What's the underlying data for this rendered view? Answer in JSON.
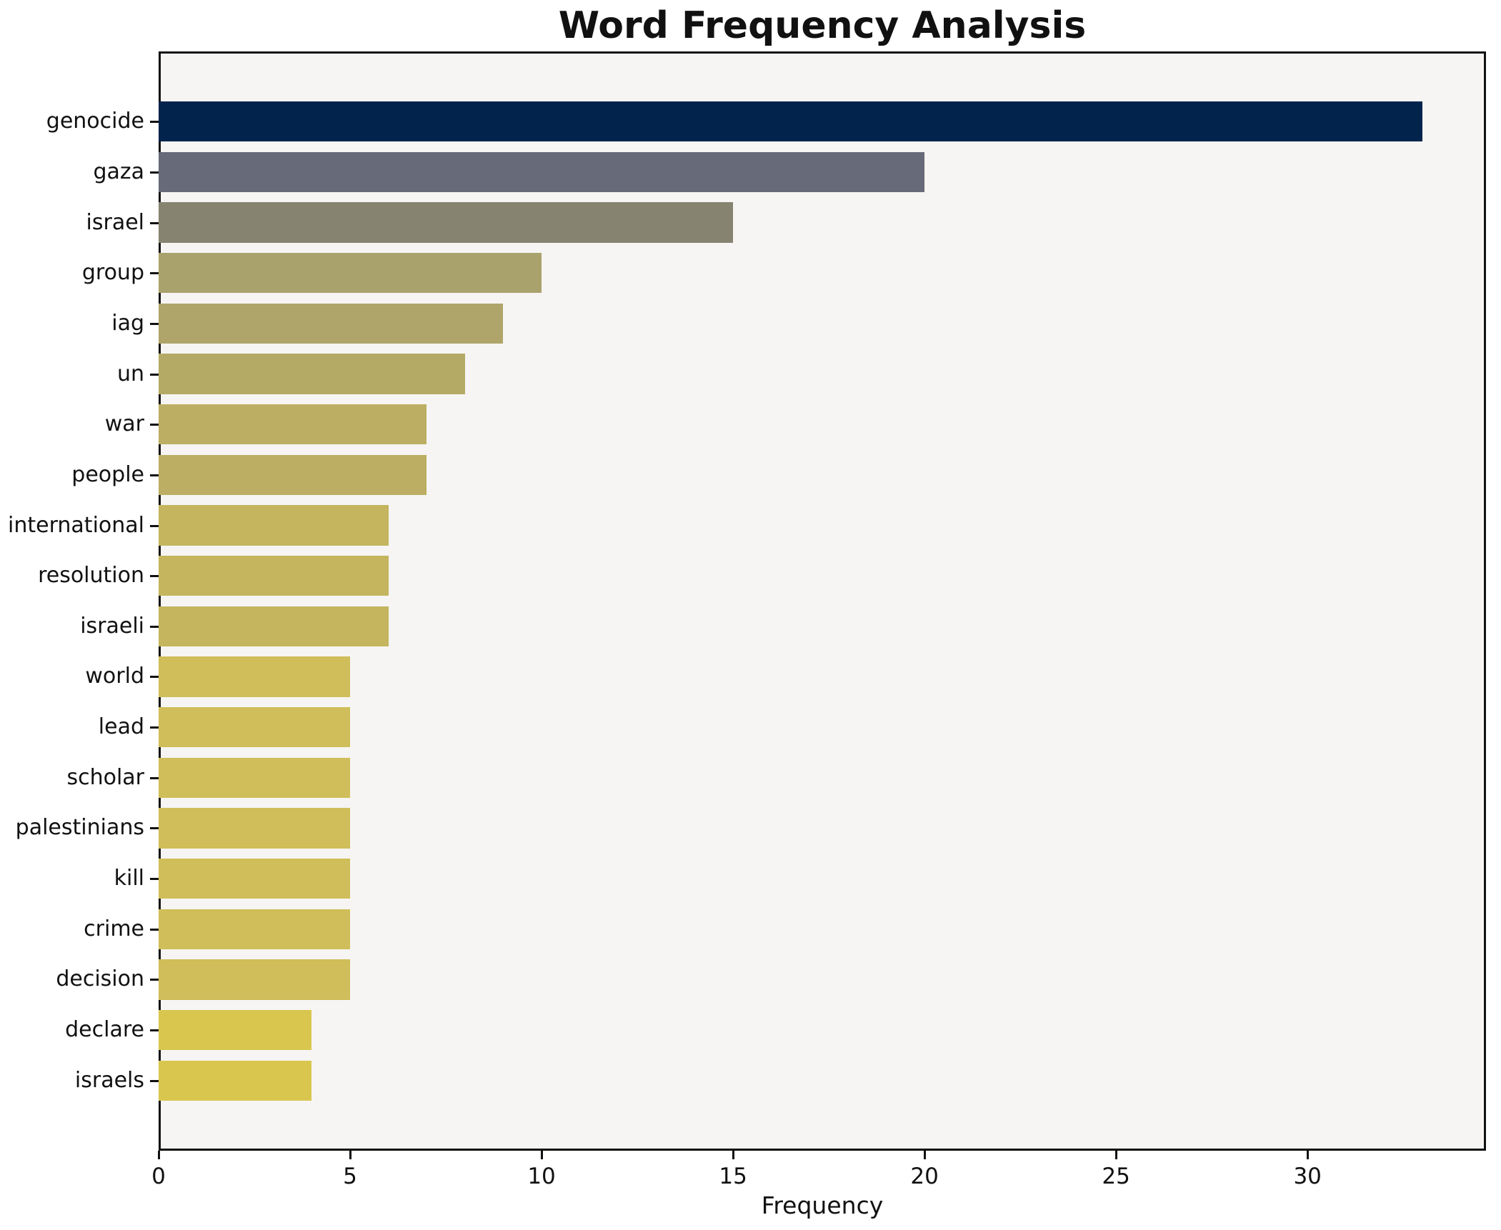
{
  "chart_data": {
    "type": "bar",
    "orientation": "horizontal",
    "title": "Word Frequency Analysis",
    "xlabel": "Frequency",
    "ylabel": "",
    "categories": [
      "genocide",
      "gaza",
      "israel",
      "group",
      "iag",
      "un",
      "war",
      "people",
      "international",
      "resolution",
      "israeli",
      "world",
      "lead",
      "scholar",
      "palestinians",
      "kill",
      "crime",
      "decision",
      "declare",
      "israels"
    ],
    "values": [
      33,
      20,
      15,
      10,
      9,
      8,
      7,
      7,
      6,
      6,
      6,
      5,
      5,
      5,
      5,
      5,
      5,
      5,
      4,
      4
    ],
    "bar_colors": [
      "#02234c",
      "#676a78",
      "#868371",
      "#aaa26c",
      "#afa56a",
      "#b4aa66",
      "#bcae62",
      "#bcae62",
      "#c4b55e",
      "#c4b55e",
      "#c4b55e",
      "#cfbe59",
      "#cfbe59",
      "#cfbe59",
      "#cfbe59",
      "#cfbe59",
      "#cfbe59",
      "#cfbe59",
      "#d9c64f",
      "#d9c64f"
    ],
    "xticks": [
      0,
      5,
      10,
      15,
      20,
      25,
      30
    ],
    "xlim": [
      0,
      34.66
    ],
    "grid": false,
    "legend": null,
    "plot_bg": "#f6f5f3",
    "fig_bg": "#ffffff",
    "spine_color": "#111111",
    "text_color": "#111111"
  }
}
